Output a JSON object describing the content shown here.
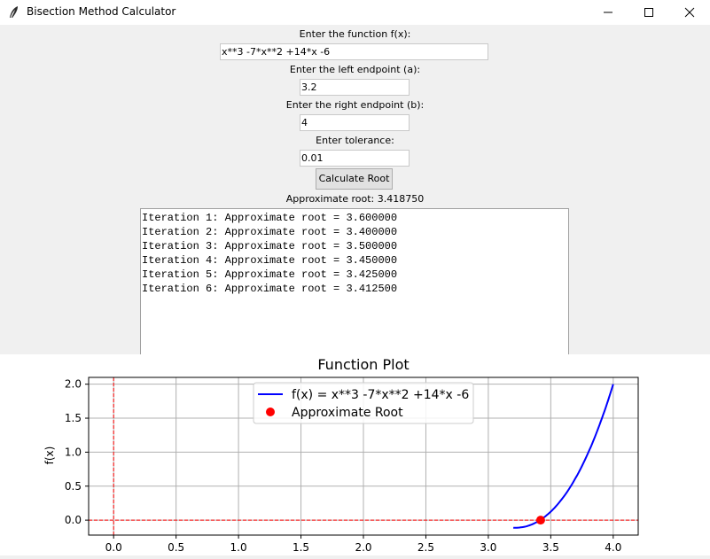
{
  "window": {
    "title": "Bisection Method Calculator",
    "icon": "feather-icon"
  },
  "form": {
    "function_label": "Enter the function f(x):",
    "function_value": "x**3 -7*x**2 +14*x -6",
    "left_label": "Enter the left endpoint (a):",
    "left_value": "3.2",
    "right_label": "Enter the right endpoint (b):",
    "right_value": "4",
    "tolerance_label": "Enter tolerance:",
    "tolerance_value": "0.01",
    "calc_button": "Calculate Root",
    "result_text": "Approximate root: 3.418750"
  },
  "output": {
    "lines": [
      "Iteration 1: Approximate root = 3.600000",
      "Iteration 2: Approximate root = 3.400000",
      "Iteration 3: Approximate root = 3.500000",
      "Iteration 4: Approximate root = 3.450000",
      "Iteration 5: Approximate root = 3.425000",
      "Iteration 6: Approximate root = 3.412500"
    ]
  },
  "chart_data": {
    "type": "line",
    "title": "Function Plot",
    "xlabel": "",
    "ylabel": "f(x)",
    "xlim": [
      -0.2,
      4.2
    ],
    "ylim": [
      -0.22,
      2.1
    ],
    "xticks": [
      "0.0",
      "0.5",
      "1.0",
      "1.5",
      "2.0",
      "2.5",
      "3.0",
      "3.5",
      "4.0"
    ],
    "yticks": [
      "0.0",
      "0.5",
      "1.0",
      "1.5",
      "2.0"
    ],
    "grid": true,
    "legend_placement": "top-center",
    "series": [
      {
        "name": "f(x) = x**3 -7*x**2 +14*x -6",
        "kind": "line",
        "color": "#0000ff",
        "x_range": [
          3.2,
          4.0
        ],
        "expression": "x**3 -7*x**2 +14*x -6"
      },
      {
        "name": "Approximate Root",
        "kind": "point",
        "color": "#ff0000",
        "x": 3.41875,
        "y": 0
      }
    ],
    "reference_lines": [
      {
        "axis": "y",
        "value": 0,
        "color": "#ff0000",
        "style": "dashed"
      },
      {
        "axis": "x",
        "value": 0,
        "color": "#ff0000",
        "style": "dashed"
      }
    ]
  }
}
